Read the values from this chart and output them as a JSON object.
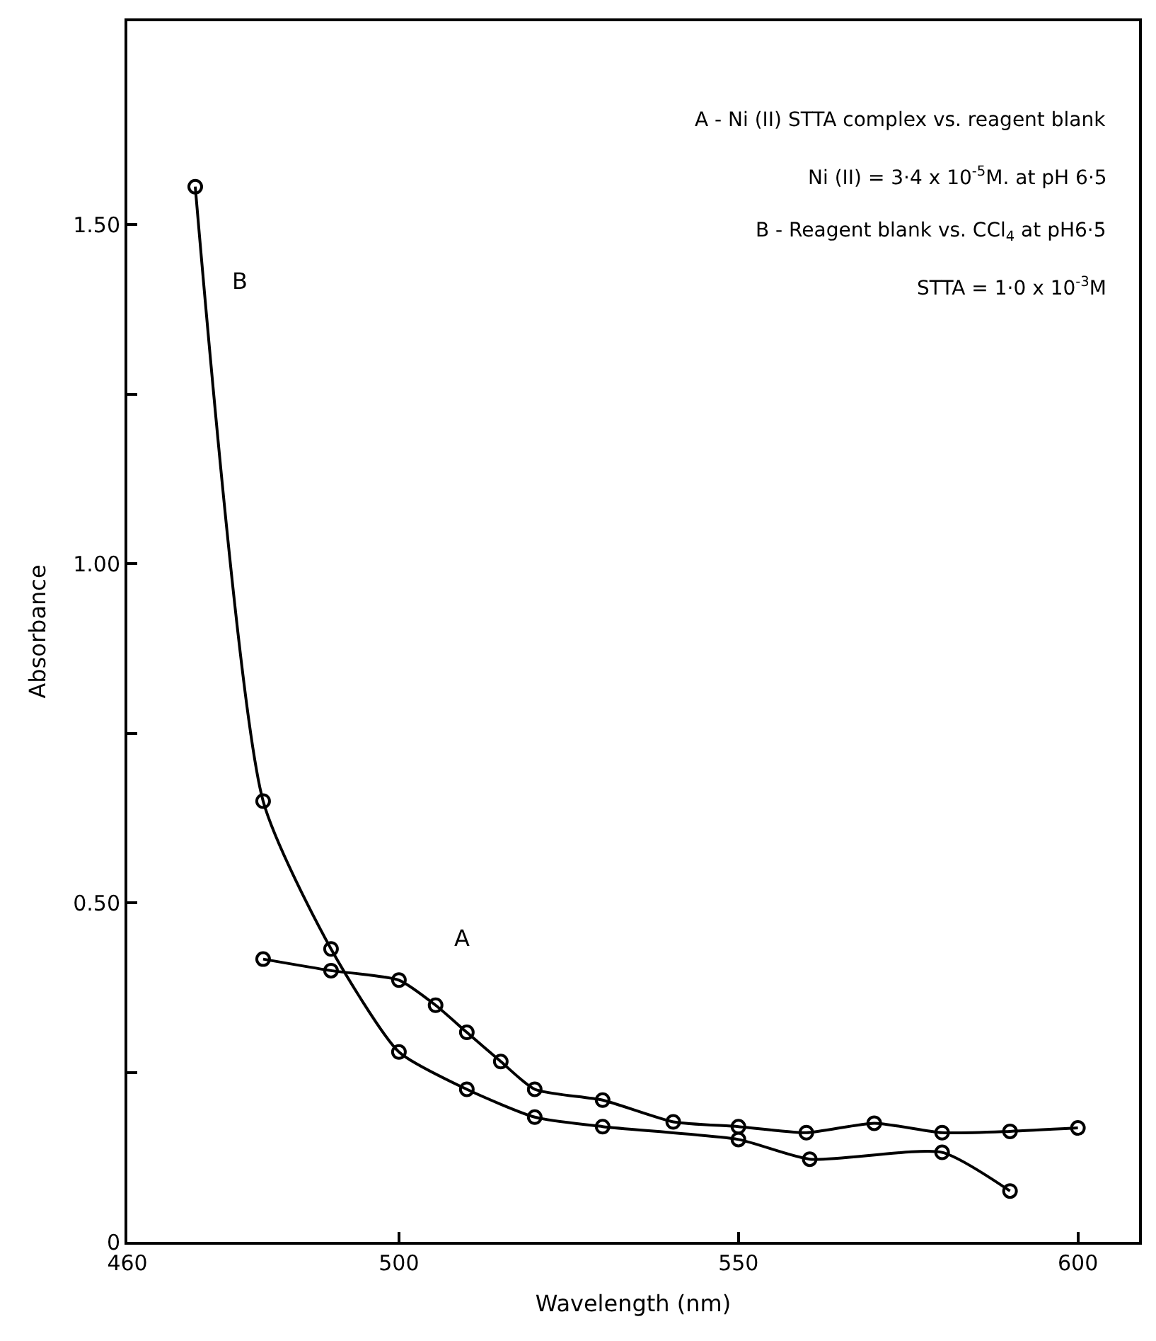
{
  "chart_data": {
    "type": "line",
    "xlabel": "Wavelength (nm)",
    "ylabel": "Absorbance",
    "xlim": [
      460,
      609
    ],
    "xticks": [
      460,
      500,
      550,
      600
    ],
    "ylim": [
      0,
      1.8
    ],
    "yticks": [
      {
        "value": 0,
        "label": "0"
      },
      {
        "value": 0.25,
        "label": null
      },
      {
        "value": 0.5,
        "label": "0.50"
      },
      {
        "value": 0.75,
        "label": null
      },
      {
        "value": 1.0,
        "label": "1.00"
      },
      {
        "value": 1.25,
        "label": null
      },
      {
        "value": 1.5,
        "label": "1.50"
      }
    ],
    "marker": "circle",
    "line_style": "solid",
    "series": [
      {
        "color": "#000000",
        "x": [
          480,
          490,
          500,
          505.4,
          510,
          515,
          520,
          530,
          540.4,
          550,
          560,
          570,
          580,
          590,
          600
        ],
        "values": [
          0.417,
          0.4,
          0.386,
          0.349,
          0.309,
          0.266,
          0.225,
          0.209,
          0.177,
          0.17,
          0.161,
          0.175,
          0.161,
          0.163,
          0.168
        ]
      },
      {
        "color": "#000000",
        "x": [
          470,
          480,
          490,
          500,
          510,
          520,
          530,
          550,
          560.5,
          580,
          590
        ],
        "values": [
          1.556,
          0.65,
          0.432,
          0.28,
          0.225,
          0.184,
          0.17,
          0.151,
          0.122,
          0.132,
          0.075
        ]
      }
    ],
    "annotations": [
      "A",
      "B",
      "A - Ni (II) STTA complex vs. reagent blank",
      "Ni (II) = 3·4 x 10$^{-5}$M. at pH 6·5",
      "B - Reagent blank vs. CCl$_{4}$ at pH6·5",
      "STTA = 1·0 x 10$^{-3}$M"
    ]
  }
}
